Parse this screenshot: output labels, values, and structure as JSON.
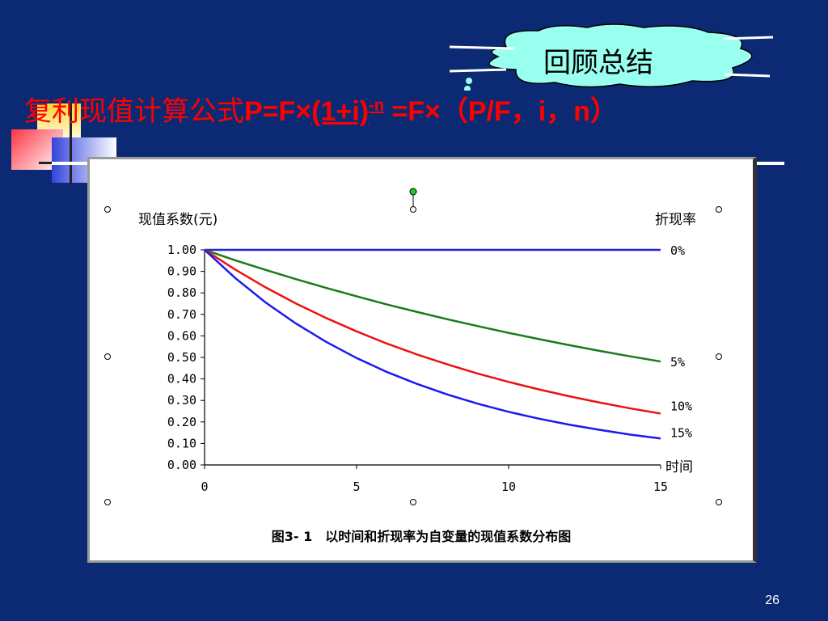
{
  "cloud_label": "回顾总结",
  "formula": {
    "prefix": "复利现值计算公式",
    "p_eq_f": "P=F×",
    "base": "(1+i)",
    "exponent": "-n",
    "suffix": " =F×（P/F，i，n）"
  },
  "page_number": "26",
  "chart_data": {
    "type": "line",
    "title": "",
    "ylabel": "现值系数(元)",
    "xlabel": "时间",
    "legend_title": "折现率",
    "caption": "图3- 1　以时间和折现率为自变量的现值系数分布图",
    "x": [
      0,
      1,
      2,
      3,
      4,
      5,
      6,
      7,
      8,
      9,
      10,
      11,
      12,
      13,
      14,
      15
    ],
    "xticks": [
      "0",
      "5",
      "10",
      "15"
    ],
    "yticks": [
      "0.00",
      "0.10",
      "0.20",
      "0.30",
      "0.40",
      "0.50",
      "0.60",
      "0.70",
      "0.80",
      "0.90",
      "1.00"
    ],
    "xlim": [
      0,
      15
    ],
    "ylim": [
      0,
      1
    ],
    "series": [
      {
        "name": "0%",
        "color": "#2222cc",
        "values": [
          1,
          1,
          1,
          1,
          1,
          1,
          1,
          1,
          1,
          1,
          1,
          1,
          1,
          1,
          1,
          1
        ]
      },
      {
        "name": "5%",
        "color": "#1a7a1a",
        "values": [
          1,
          0.952,
          0.907,
          0.864,
          0.823,
          0.784,
          0.746,
          0.711,
          0.677,
          0.645,
          0.614,
          0.585,
          0.557,
          0.53,
          0.505,
          0.481
        ]
      },
      {
        "name": "10%",
        "color": "#ee1111",
        "values": [
          1,
          0.909,
          0.826,
          0.751,
          0.683,
          0.621,
          0.564,
          0.513,
          0.467,
          0.424,
          0.386,
          0.351,
          0.319,
          0.29,
          0.263,
          0.239
        ]
      },
      {
        "name": "15%",
        "color": "#1a1aee",
        "values": [
          1,
          0.87,
          0.756,
          0.658,
          0.572,
          0.497,
          0.432,
          0.376,
          0.327,
          0.284,
          0.247,
          0.215,
          0.187,
          0.163,
          0.141,
          0.123
        ]
      }
    ]
  }
}
